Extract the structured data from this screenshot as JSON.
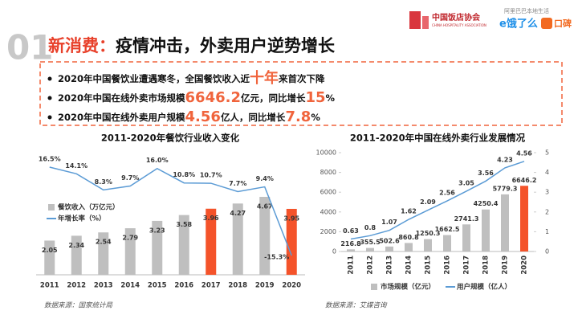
{
  "header": {
    "number": "01",
    "title_highlight": "新消费：",
    "title": "疫情冲击，外卖用户逆势增长"
  },
  "logos": {
    "association": "中国饭店协会",
    "association_en": "CHINA HOSPITALITY ASSOCIATION",
    "tagline": "阿里巴巴本地生活",
    "eleme": "e饿了么",
    "koubei": "口碑"
  },
  "bullets": [
    [
      "2020年中国餐饮业遭遇寒冬，全国餐饮收入近",
      "十年",
      "来首次下降"
    ],
    [
      "2020年中国在线外卖市场规模",
      "6646.2",
      "亿元，同比增长",
      "15",
      "%"
    ],
    [
      "2020年中国在线外卖用户规模",
      "4.56",
      "亿人，同比增长",
      "7.8",
      "%"
    ]
  ],
  "chart_data": [
    {
      "type": "bar",
      "title": "2011-2020年餐饮行业收入变化",
      "categories": [
        "2011",
        "2012",
        "2013",
        "2014",
        "2015",
        "2016",
        "2017",
        "2018",
        "2019",
        "2020"
      ],
      "series": [
        {
          "name": "餐饮收入（万亿元）",
          "type": "bar",
          "color": "#bfbfbf",
          "colors": [
            "#bfbfbf",
            "#bfbfbf",
            "#bfbfbf",
            "#bfbfbf",
            "#bfbfbf",
            "#bfbfbf",
            "#f4532a",
            "#bfbfbf",
            "#bfbfbf",
            "#f4532a"
          ],
          "values": [
            2.05,
            2.34,
            2.54,
            2.79,
            3.23,
            3.58,
            3.96,
            4.27,
            4.67,
            3.95
          ]
        },
        {
          "name": "年增长率（%）",
          "type": "line",
          "color": "#5b9bd5",
          "values": [
            16.5,
            14.1,
            8.3,
            9.7,
            16.0,
            10.8,
            10.7,
            7.7,
            9.4,
            -15.3
          ],
          "value_labels": [
            "16.5%",
            "14.1%",
            "8.3%",
            "9.7%",
            "16.0%",
            "10.8%",
            "10.7%",
            "7.7%",
            "9.4%",
            "-15.3%"
          ]
        }
      ],
      "source": "数据来源：国家统计局"
    },
    {
      "type": "bar",
      "title": "2011-2020年中国在线外卖行业发展情况",
      "categories": [
        "2011",
        "2012",
        "2013",
        "2014",
        "2015",
        "2016",
        "2017",
        "2018",
        "2019",
        "2020"
      ],
      "ylim": [
        0,
        10000
      ],
      "yticks": [
        0,
        2000,
        4000,
        6000,
        8000,
        10000
      ],
      "y2lim": [
        0,
        5
      ],
      "y2ticks": [
        0,
        1,
        2,
        3,
        4,
        5
      ],
      "series": [
        {
          "name": "市场规模（亿元）",
          "type": "bar",
          "color": "#bfbfbf",
          "colors": [
            "#bfbfbf",
            "#bfbfbf",
            "#bfbfbf",
            "#bfbfbf",
            "#bfbfbf",
            "#bfbfbf",
            "#bfbfbf",
            "#bfbfbf",
            "#bfbfbf",
            "#f4532a"
          ],
          "values": [
            216.8,
            355.5,
            502.6,
            860.8,
            1250.3,
            1662.5,
            2741.3,
            4250.4,
            5779.3,
            6646.2
          ]
        },
        {
          "name": "用户规模（亿人）",
          "type": "line",
          "axis": "y2",
          "color": "#5b9bd5",
          "values": [
            0.63,
            0.8,
            1.07,
            1.62,
            2.09,
            2.56,
            3.05,
            3.56,
            4.23,
            4.56
          ]
        }
      ],
      "source": "数据来源：艾媒咨询"
    }
  ]
}
